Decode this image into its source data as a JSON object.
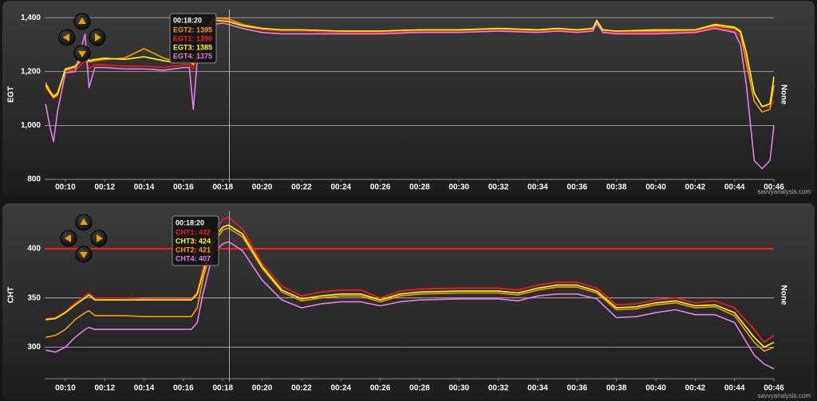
{
  "chart_data": [
    {
      "type": "line",
      "y_label": "EGT",
      "y2_label": "None",
      "watermark": "savvyanalysis.com",
      "x": [
        9.0,
        9.2,
        9.4,
        9.6,
        10,
        10.5,
        11,
        11.2,
        11.5,
        12,
        13,
        14,
        15,
        15.5,
        16,
        16.3,
        16.5,
        16.7,
        17,
        17.5,
        18,
        18.3,
        19,
        20,
        21,
        22,
        24,
        26,
        28,
        30,
        32,
        34,
        35,
        36,
        36.8,
        37,
        37.3,
        38,
        40,
        42,
        43,
        44,
        44.3,
        44.6,
        45,
        45.4,
        45.8,
        46
      ],
      "series": [
        {
          "name": "EGT1",
          "color": "#ff1a1a",
          "values": [
            1140,
            1120,
            1100,
            1110,
            1200,
            1205,
            1240,
            1210,
            1225,
            1225,
            1220,
            1220,
            1215,
            1220,
            1225,
            1225,
            1210,
            1250,
            1330,
            1385,
            1392,
            1390,
            1370,
            1355,
            1350,
            1350,
            1345,
            1345,
            1350,
            1350,
            1355,
            1350,
            1355,
            1350,
            1355,
            1375,
            1350,
            1345,
            1345,
            1350,
            1365,
            1350,
            1330,
            1250,
            1120,
            1070,
            1070,
            1090
          ]
        },
        {
          "name": "EGT2",
          "color": "#ff9900",
          "values": [
            1160,
            1130,
            1110,
            1120,
            1205,
            1215,
            1260,
            1235,
            1240,
            1245,
            1250,
            1285,
            1250,
            1240,
            1235,
            1235,
            1225,
            1260,
            1340,
            1395,
            1398,
            1395,
            1375,
            1360,
            1355,
            1355,
            1350,
            1350,
            1355,
            1355,
            1360,
            1355,
            1360,
            1355,
            1360,
            1385,
            1355,
            1350,
            1350,
            1355,
            1370,
            1360,
            1345,
            1230,
            1090,
            1050,
            1060,
            1150
          ]
        },
        {
          "name": "EGT3",
          "color": "#ffff00",
          "values": [
            1150,
            1125,
            1105,
            1115,
            1210,
            1220,
            1270,
            1240,
            1245,
            1250,
            1245,
            1255,
            1240,
            1235,
            1240,
            1240,
            1230,
            1265,
            1345,
            1390,
            1388,
            1385,
            1370,
            1360,
            1355,
            1355,
            1350,
            1350,
            1355,
            1355,
            1360,
            1355,
            1360,
            1355,
            1360,
            1390,
            1355,
            1350,
            1355,
            1355,
            1375,
            1365,
            1350,
            1270,
            1120,
            1070,
            1080,
            1180
          ]
        },
        {
          "name": "EGT4",
          "color": "#e67fe6",
          "values": [
            1080,
            1000,
            940,
            1050,
            1195,
            1200,
            1340,
            1140,
            1215,
            1215,
            1210,
            1210,
            1205,
            1210,
            1215,
            1215,
            1060,
            1240,
            1320,
            1375,
            1380,
            1375,
            1360,
            1345,
            1340,
            1340,
            1340,
            1340,
            1345,
            1345,
            1350,
            1345,
            1350,
            1345,
            1350,
            1380,
            1345,
            1340,
            1340,
            1345,
            1360,
            1345,
            1300,
            1150,
            870,
            840,
            870,
            1000
          ]
        }
      ],
      "xlim": [
        8.95,
        46
      ],
      "ylim": [
        800,
        1430
      ],
      "xticks": [
        {
          "value": 10,
          "label": "00:10"
        },
        {
          "value": 12,
          "label": "00:12"
        },
        {
          "value": 14,
          "label": "00:14"
        },
        {
          "value": 16,
          "label": "00:16"
        },
        {
          "value": 18,
          "label": "00:18"
        },
        {
          "value": 20,
          "label": "00:20"
        },
        {
          "value": 22,
          "label": "00:22"
        },
        {
          "value": 24,
          "label": "00:24"
        },
        {
          "value": 26,
          "label": "00:26"
        },
        {
          "value": 28,
          "label": "00:28"
        },
        {
          "value": 30,
          "label": "00:30"
        },
        {
          "value": 32,
          "label": "00:32"
        },
        {
          "value": 34,
          "label": "00:34"
        },
        {
          "value": 36,
          "label": "00:36"
        },
        {
          "value": 38,
          "label": "00:38"
        },
        {
          "value": 40,
          "label": "00:40"
        },
        {
          "value": 42,
          "label": "00:42"
        },
        {
          "value": 44,
          "label": "00:44"
        },
        {
          "value": 46,
          "label": "00:46"
        }
      ],
      "yticks": [
        {
          "value": 800,
          "label": "800"
        },
        {
          "value": 1000,
          "label": "1,000"
        },
        {
          "value": 1200,
          "label": "1,200"
        },
        {
          "value": 1400,
          "label": "1,400"
        }
      ],
      "grid": true,
      "cursor": {
        "value": 18.333,
        "label": "00:18:20"
      },
      "tooltip": [
        {
          "text": "EGT2: 1395",
          "color": "#ff9900"
        },
        {
          "text": "EGT1: 1390",
          "color": "#ff1a1a"
        },
        {
          "text": "EGT3: 1385",
          "color": "#ffff00"
        },
        {
          "text": "EGT4: 1375",
          "color": "#e67fe6"
        }
      ]
    },
    {
      "type": "line",
      "y_label": "CHT",
      "y2_label": "None",
      "watermark": "savvyanalysis.com",
      "x": [
        9.0,
        9.5,
        10,
        10.5,
        11,
        11.2,
        11.5,
        12,
        13,
        14,
        15,
        16,
        16.4,
        16.7,
        17,
        17.5,
        18,
        18.3,
        19,
        20,
        21,
        22,
        23,
        24,
        25,
        26,
        27,
        28,
        30,
        32,
        33,
        34,
        35,
        36,
        37,
        38,
        39,
        40,
        41,
        42,
        43,
        44,
        45,
        45.5,
        46
      ],
      "series": [
        {
          "name": "CHT1",
          "color": "#ff1a1a",
          "values": [
            329,
            330,
            336,
            345,
            352,
            355,
            350,
            350,
            350,
            349,
            349,
            349,
            349,
            356,
            380,
            415,
            430,
            432,
            420,
            385,
            362,
            352,
            356,
            358,
            358,
            350,
            357,
            359,
            360,
            360,
            358,
            363,
            366,
            366,
            360,
            343,
            344,
            348,
            350,
            345,
            347,
            340,
            318,
            305,
            312
          ]
        },
        {
          "name": "CHT2",
          "color": "#ff9900",
          "values": [
            310,
            312,
            318,
            328,
            335,
            337,
            332,
            332,
            332,
            331,
            331,
            331,
            331,
            340,
            370,
            405,
            419,
            421,
            412,
            380,
            356,
            347,
            350,
            352,
            352,
            346,
            352,
            354,
            355,
            355,
            353,
            358,
            361,
            361,
            355,
            338,
            339,
            343,
            345,
            340,
            341,
            332,
            305,
            296,
            300
          ]
        },
        {
          "name": "CHT3",
          "color": "#ffff00",
          "values": [
            328,
            329,
            335,
            343,
            350,
            353,
            348,
            348,
            348,
            348,
            348,
            348,
            348,
            354,
            376,
            410,
            422,
            424,
            415,
            382,
            358,
            349,
            352,
            354,
            354,
            348,
            354,
            356,
            357,
            357,
            355,
            360,
            363,
            363,
            357,
            340,
            341,
            345,
            347,
            342,
            343,
            335,
            310,
            300,
            305
          ]
        },
        {
          "name": "CHT4",
          "color": "#e67fe6",
          "values": [
            297,
            295,
            300,
            310,
            318,
            320,
            318,
            318,
            318,
            318,
            318,
            318,
            318,
            325,
            355,
            395,
            405,
            407,
            398,
            368,
            348,
            340,
            344,
            346,
            346,
            342,
            346,
            348,
            349,
            349,
            347,
            352,
            354,
            354,
            349,
            330,
            331,
            335,
            338,
            333,
            333,
            325,
            292,
            283,
            278
          ]
        }
      ],
      "xlim": [
        8.95,
        46
      ],
      "ylim": [
        268,
        438
      ],
      "xticks": [
        {
          "value": 10,
          "label": "00:10"
        },
        {
          "value": 12,
          "label": "00:12"
        },
        {
          "value": 14,
          "label": "00:14"
        },
        {
          "value": 16,
          "label": "00:16"
        },
        {
          "value": 18,
          "label": "00:18"
        },
        {
          "value": 20,
          "label": "00:20"
        },
        {
          "value": 22,
          "label": "00:22"
        },
        {
          "value": 24,
          "label": "00:24"
        },
        {
          "value": 26,
          "label": "00:26"
        },
        {
          "value": 28,
          "label": "00:28"
        },
        {
          "value": 30,
          "label": "00:30"
        },
        {
          "value": 32,
          "label": "00:32"
        },
        {
          "value": 34,
          "label": "00:34"
        },
        {
          "value": 36,
          "label": "00:36"
        },
        {
          "value": 38,
          "label": "00:38"
        },
        {
          "value": 40,
          "label": "00:40"
        },
        {
          "value": 42,
          "label": "00:42"
        },
        {
          "value": 44,
          "label": "00:44"
        },
        {
          "value": 46,
          "label": "00:46"
        }
      ],
      "yticks": [
        300,
        350,
        400
      ],
      "grid": true,
      "limit": {
        "value": 400,
        "color": "#ff1a1a"
      },
      "cursor": {
        "value": 18.333,
        "label": "00:18:20"
      },
      "tooltip": [
        {
          "text": "CHT1: 432",
          "color": "#ff1a1a"
        },
        {
          "text": "CHT3: 424",
          "color": "#ffff00"
        },
        {
          "text": "CHT2: 421",
          "color": "#ff9900"
        },
        {
          "text": "CHT4: 407",
          "color": "#e67fe6"
        }
      ]
    }
  ]
}
